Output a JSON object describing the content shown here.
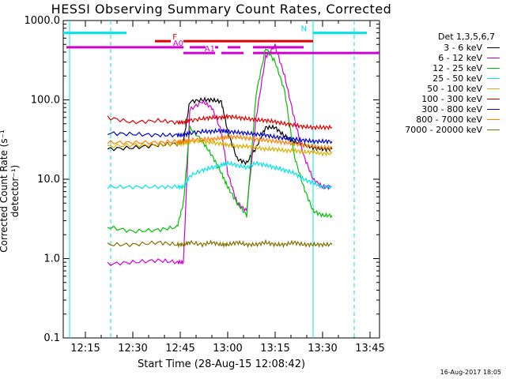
{
  "window": {
    "title": "HESSI Observing Summary Count Rates, Corrected",
    "xlabel": "Start Time (28-Aug-15 12:08:42)",
    "ylabel": "Corrected Count Rate (s⁻¹ detector⁻¹)",
    "stamp": "16-Aug-2017 18:05"
  },
  "legend": {
    "header": "Det 1,3,5,6,7"
  },
  "chart_data": {
    "type": "line",
    "title": "HESSI Observing Summary Count Rates, Corrected",
    "xlabel": "Start Time (28-Aug-15 12:08:42)",
    "ylabel": "Corrected Count Rate (s⁻¹ detector⁻¹)",
    "yscale": "log",
    "ylim": [
      0.1,
      1000
    ],
    "xlim": [
      "12:08",
      "13:48"
    ],
    "xticks": [
      "12:15",
      "12:30",
      "12:45",
      "13:00",
      "13:15",
      "13:30",
      "13:45"
    ],
    "yticks": [
      "0.1",
      "1.0",
      "10.0",
      "100.0",
      "1000.0"
    ],
    "legend_position": "right",
    "bars": [
      {
        "label": "N",
        "color": "#00e5e5",
        "level": 700,
        "segments": [
          [
            "12:08",
            "12:28"
          ],
          [
            "13:27",
            "13:44"
          ]
        ]
      },
      {
        "label": "F",
        "color": "#e00000",
        "level": 550,
        "segments": [
          [
            "12:37",
            "12:42"
          ],
          [
            "12:46",
            "13:27"
          ]
        ]
      },
      {
        "label": "A0",
        "color": "#d000d0",
        "level": 460,
        "segments": [
          [
            "12:09",
            "12:46"
          ],
          [
            "12:48",
            "12:53"
          ],
          [
            "12:56",
            "12:57"
          ],
          [
            "13:00",
            "13:04"
          ],
          [
            "13:08",
            "13:24"
          ]
        ]
      },
      {
        "label": "A1",
        "color": "#d000d0",
        "level": 390,
        "segments": [
          [
            "12:46",
            "12:56"
          ],
          [
            "12:58",
            "13:05"
          ],
          [
            "13:08",
            "13:48"
          ]
        ]
      }
    ],
    "vlines": [
      {
        "x": "12:10",
        "color": "#00e5e5",
        "style": "solid"
      },
      {
        "x": "12:23",
        "color": "#00e5e5",
        "style": "dashed"
      },
      {
        "x": "13:27",
        "color": "#00e5e5",
        "style": "solid"
      },
      {
        "x": "13:40",
        "color": "#00e5e5",
        "style": "dashed"
      }
    ],
    "x": [
      "12:22",
      "12:30",
      "12:38",
      "12:44",
      "12:46",
      "12:48",
      "12:52",
      "12:55",
      "12:58",
      "13:00",
      "13:03",
      "13:06",
      "13:09",
      "13:12",
      "13:15",
      "13:18",
      "13:21",
      "13:24",
      "13:27",
      "13:30",
      "13:33"
    ],
    "series": [
      {
        "name": "3 - 6 keV",
        "color": "#000000",
        "values": [
          24,
          25,
          27,
          28,
          30,
          95,
          100,
          100,
          95,
          40,
          18,
          16,
          25,
          45,
          45,
          35,
          30,
          27,
          25,
          24,
          24
        ]
      },
      {
        "name": "6 - 12 keV",
        "color": "#d000d0",
        "values": [
          0.85,
          0.9,
          0.95,
          0.9,
          0.9,
          75,
          95,
          80,
          40,
          12,
          5,
          4,
          60,
          350,
          480,
          200,
          60,
          20,
          10,
          8,
          8
        ]
      },
      {
        "name": "12 - 25 keV",
        "color": "#00c000",
        "values": [
          2.5,
          2.2,
          2.3,
          2.5,
          5,
          45,
          30,
          20,
          12,
          8,
          5,
          3.5,
          120,
          450,
          300,
          130,
          20,
          8,
          4,
          3.5,
          3.5
        ]
      },
      {
        "name": "25 - 50 keV",
        "color": "#00e5e5",
        "values": [
          8,
          8,
          8,
          8,
          8,
          11,
          13,
          14,
          15,
          16,
          15,
          14,
          16,
          15,
          14,
          13,
          12,
          10,
          9,
          8,
          8
        ]
      },
      {
        "name": "50 - 100 keV",
        "color": "#d9b000",
        "values": [
          26,
          27,
          27,
          28,
          28,
          30,
          30,
          29,
          28,
          27,
          26,
          26,
          25,
          24,
          24,
          23,
          23,
          22,
          22,
          21,
          21
        ]
      },
      {
        "name": "100 - 300 keV",
        "color": "#e00000",
        "values": [
          60,
          52,
          55,
          52,
          52,
          55,
          58,
          60,
          60,
          62,
          60,
          58,
          56,
          55,
          53,
          50,
          48,
          46,
          45,
          45,
          45
        ]
      },
      {
        "name": "300 - 800 keV",
        "color": "#0000d0",
        "values": [
          38,
          37,
          36,
          36,
          36,
          38,
          40,
          40,
          41,
          40,
          39,
          38,
          37,
          36,
          34,
          33,
          32,
          31,
          30,
          30,
          30
        ]
      },
      {
        "name": "800 - 7000 keV",
        "color": "#ff8000",
        "values": [
          29,
          29,
          29,
          30,
          30,
          31,
          32,
          32,
          33,
          34,
          34,
          33,
          32,
          31,
          30,
          29,
          28,
          27,
          26,
          25,
          25
        ]
      },
      {
        "name": "7000 - 20000 keV",
        "color": "#807000",
        "values": [
          1.5,
          1.5,
          1.6,
          1.5,
          1.5,
          1.6,
          1.5,
          1.6,
          1.5,
          1.5,
          1.6,
          1.5,
          1.5,
          1.6,
          1.5,
          1.5,
          1.6,
          1.5,
          1.5,
          1.5,
          1.5
        ]
      }
    ]
  }
}
